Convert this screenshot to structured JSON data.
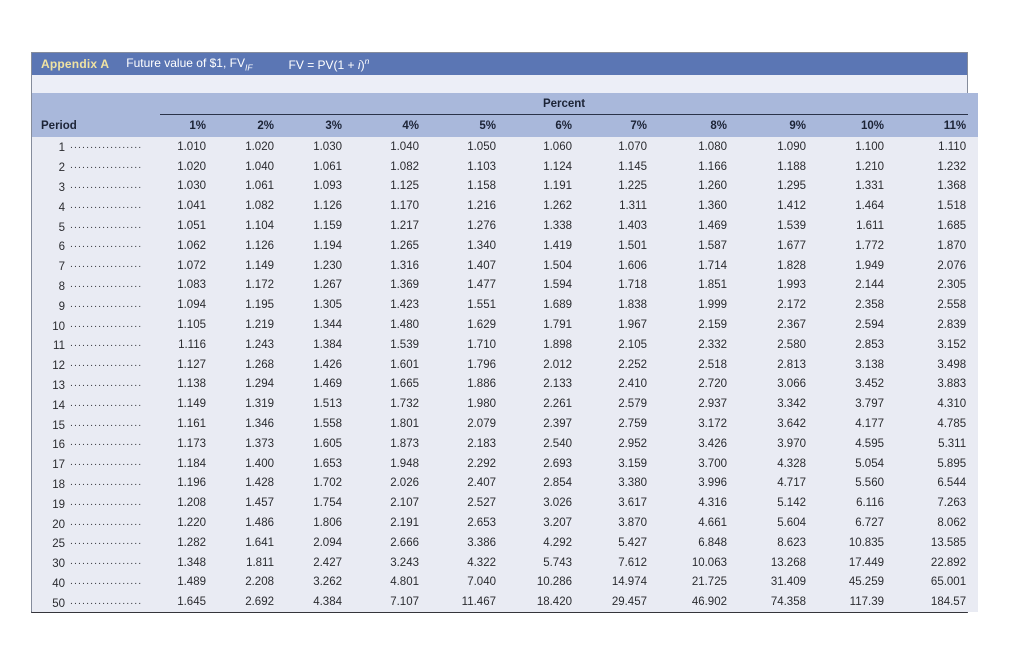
{
  "header": {
    "appendix_label": "Appendix A",
    "title_main": "Future value of $1, FV",
    "title_sub": "IF",
    "formula_prefix": "FV = PV(1 + ",
    "formula_var": "i",
    "formula_close": ")",
    "formula_sup": "n"
  },
  "colors": {
    "titlebar_bg": "#5b76b4",
    "appendix_label": "#f0e3a2",
    "header_band_bg": "#a9b8db",
    "body_bg": "#e9ebf3"
  },
  "table": {
    "group_header": "Percent",
    "period_header": "Period",
    "columns": [
      "1%",
      "2%",
      "3%",
      "4%",
      "5%",
      "6%",
      "7%",
      "8%",
      "9%",
      "10%",
      "11%"
    ],
    "leader_dots": "......................",
    "rows": [
      {
        "period": "1",
        "values": [
          "1.010",
          "1.020",
          "1.030",
          "1.040",
          "1.050",
          "1.060",
          "1.070",
          "1.080",
          "1.090",
          "1.100",
          "1.110"
        ]
      },
      {
        "period": "2",
        "values": [
          "1.020",
          "1.040",
          "1.061",
          "1.082",
          "1.103",
          "1.124",
          "1.145",
          "1.166",
          "1.188",
          "1.210",
          "1.232"
        ]
      },
      {
        "period": "3",
        "values": [
          "1.030",
          "1.061",
          "1.093",
          "1.125",
          "1.158",
          "1.191",
          "1.225",
          "1.260",
          "1.295",
          "1.331",
          "1.368"
        ]
      },
      {
        "period": "4",
        "values": [
          "1.041",
          "1.082",
          "1.126",
          "1.170",
          "1.216",
          "1.262",
          "1.311",
          "1.360",
          "1.412",
          "1.464",
          "1.518"
        ]
      },
      {
        "period": "5",
        "values": [
          "1.051",
          "1.104",
          "1.159",
          "1.217",
          "1.276",
          "1.338",
          "1.403",
          "1.469",
          "1.539",
          "1.611",
          "1.685"
        ]
      },
      {
        "period": "6",
        "values": [
          "1.062",
          "1.126",
          "1.194",
          "1.265",
          "1.340",
          "1.419",
          "1.501",
          "1.587",
          "1.677",
          "1.772",
          "1.870"
        ]
      },
      {
        "period": "7",
        "values": [
          "1.072",
          "1.149",
          "1.230",
          "1.316",
          "1.407",
          "1.504",
          "1.606",
          "1.714",
          "1.828",
          "1.949",
          "2.076"
        ]
      },
      {
        "period": "8",
        "values": [
          "1.083",
          "1.172",
          "1.267",
          "1.369",
          "1.477",
          "1.594",
          "1.718",
          "1.851",
          "1.993",
          "2.144",
          "2.305"
        ]
      },
      {
        "period": "9",
        "values": [
          "1.094",
          "1.195",
          "1.305",
          "1.423",
          "1.551",
          "1.689",
          "1.838",
          "1.999",
          "2.172",
          "2.358",
          "2.558"
        ]
      },
      {
        "period": "10",
        "values": [
          "1.105",
          "1.219",
          "1.344",
          "1.480",
          "1.629",
          "1.791",
          "1.967",
          "2.159",
          "2.367",
          "2.594",
          "2.839"
        ]
      },
      {
        "period": "11",
        "values": [
          "1.116",
          "1.243",
          "1.384",
          "1.539",
          "1.710",
          "1.898",
          "2.105",
          "2.332",
          "2.580",
          "2.853",
          "3.152"
        ]
      },
      {
        "period": "12",
        "values": [
          "1.127",
          "1.268",
          "1.426",
          "1.601",
          "1.796",
          "2.012",
          "2.252",
          "2.518",
          "2.813",
          "3.138",
          "3.498"
        ]
      },
      {
        "period": "13",
        "values": [
          "1.138",
          "1.294",
          "1.469",
          "1.665",
          "1.886",
          "2.133",
          "2.410",
          "2.720",
          "3.066",
          "3.452",
          "3.883"
        ]
      },
      {
        "period": "14",
        "values": [
          "1.149",
          "1.319",
          "1.513",
          "1.732",
          "1.980",
          "2.261",
          "2.579",
          "2.937",
          "3.342",
          "3.797",
          "4.310"
        ]
      },
      {
        "period": "15",
        "values": [
          "1.161",
          "1.346",
          "1.558",
          "1.801",
          "2.079",
          "2.397",
          "2.759",
          "3.172",
          "3.642",
          "4.177",
          "4.785"
        ]
      },
      {
        "period": "16",
        "values": [
          "1.173",
          "1.373",
          "1.605",
          "1.873",
          "2.183",
          "2.540",
          "2.952",
          "3.426",
          "3.970",
          "4.595",
          "5.311"
        ]
      },
      {
        "period": "17",
        "values": [
          "1.184",
          "1.400",
          "1.653",
          "1.948",
          "2.292",
          "2.693",
          "3.159",
          "3.700",
          "4.328",
          "5.054",
          "5.895"
        ]
      },
      {
        "period": "18",
        "values": [
          "1.196",
          "1.428",
          "1.702",
          "2.026",
          "2.407",
          "2.854",
          "3.380",
          "3.996",
          "4.717",
          "5.560",
          "6.544"
        ]
      },
      {
        "period": "19",
        "values": [
          "1.208",
          "1.457",
          "1.754",
          "2.107",
          "2.527",
          "3.026",
          "3.617",
          "4.316",
          "5.142",
          "6.116",
          "7.263"
        ]
      },
      {
        "period": "20",
        "values": [
          "1.220",
          "1.486",
          "1.806",
          "2.191",
          "2.653",
          "3.207",
          "3.870",
          "4.661",
          "5.604",
          "6.727",
          "8.062"
        ]
      },
      {
        "period": "25",
        "values": [
          "1.282",
          "1.641",
          "2.094",
          "2.666",
          "3.386",
          "4.292",
          "5.427",
          "6.848",
          "8.623",
          "10.835",
          "13.585"
        ]
      },
      {
        "period": "30",
        "values": [
          "1.348",
          "1.811",
          "2.427",
          "3.243",
          "4.322",
          "5.743",
          "7.612",
          "10.063",
          "13.268",
          "17.449",
          "22.892"
        ]
      },
      {
        "period": "40",
        "values": [
          "1.489",
          "2.208",
          "3.262",
          "4.801",
          "7.040",
          "10.286",
          "14.974",
          "21.725",
          "31.409",
          "45.259",
          "65.001"
        ]
      },
      {
        "period": "50",
        "values": [
          "1.645",
          "2.692",
          "4.384",
          "7.107",
          "11.467",
          "18.420",
          "29.457",
          "46.902",
          "74.358",
          "117.39",
          "184.57"
        ]
      }
    ]
  }
}
